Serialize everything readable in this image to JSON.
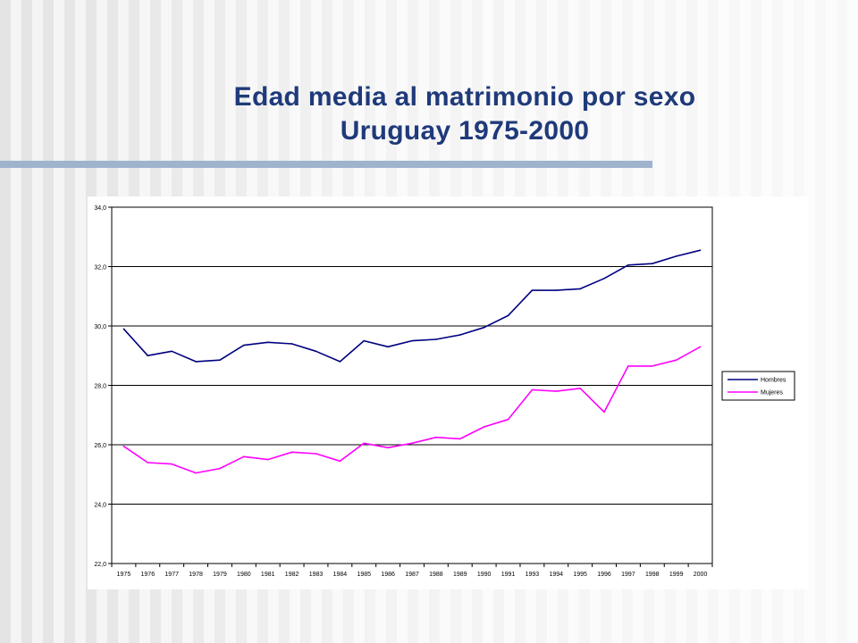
{
  "title": {
    "line1": "Edad media al matrimonio por sexo",
    "line2": "Uruguay 1975-2000"
  },
  "colors": {
    "title": "#1f3a7a",
    "hombres": "#00007f",
    "mujeres": "#ff00ff",
    "rule": "#9fb3cd"
  },
  "chart_data": {
    "type": "line",
    "title": "",
    "xlabel": "",
    "ylabel": "",
    "categories": [
      "1975",
      "1976",
      "1977",
      "1978",
      "1979",
      "1980",
      "1981",
      "1982",
      "1983",
      "1984",
      "1985",
      "1986",
      "1987",
      "1988",
      "1989",
      "1990",
      "1991",
      "1993",
      "1994",
      "1995",
      "1996",
      "1997",
      "1998",
      "1999",
      "2000"
    ],
    "ylim": [
      22.0,
      34.0
    ],
    "y_ticks": [
      "22,0",
      "24,0",
      "26,0",
      "28,0",
      "30,0",
      "32,0",
      "34,0"
    ],
    "grid": true,
    "legend_position": "right",
    "series": [
      {
        "name": "Hombres",
        "color": "#00007f",
        "values": [
          29.9,
          29.0,
          29.15,
          28.8,
          28.85,
          29.35,
          29.45,
          29.4,
          29.15,
          28.8,
          29.5,
          29.3,
          29.5,
          29.55,
          29.7,
          29.95,
          30.35,
          31.2,
          31.2,
          31.25,
          31.6,
          32.05,
          32.1,
          32.35,
          32.55
        ]
      },
      {
        "name": "Mujeres",
        "color": "#ff00ff",
        "values": [
          25.95,
          25.4,
          25.35,
          25.05,
          25.2,
          25.6,
          25.5,
          25.75,
          25.7,
          25.45,
          26.05,
          25.9,
          26.05,
          26.25,
          26.2,
          26.6,
          26.85,
          27.85,
          27.8,
          27.9,
          27.1,
          28.65,
          28.65,
          28.85,
          29.3
        ]
      }
    ]
  }
}
